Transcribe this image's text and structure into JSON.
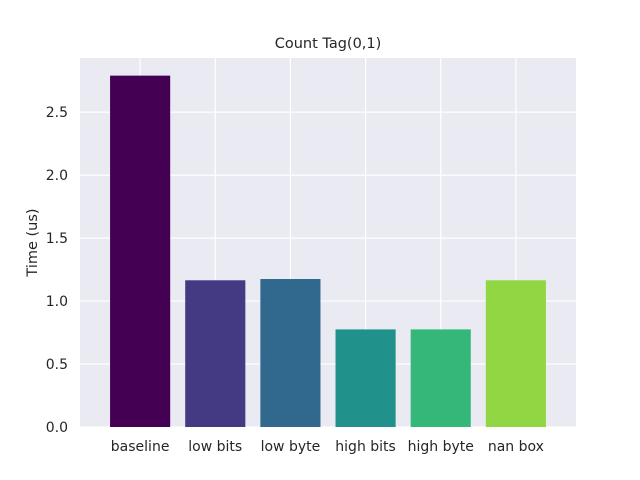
{
  "chart_data": {
    "type": "bar",
    "title": "Count Tag(0,1)",
    "xlabel": "",
    "ylabel": "Time (us)",
    "categories": [
      "baseline",
      "low bits",
      "low byte",
      "high bits",
      "high byte",
      "nan box"
    ],
    "values": [
      2.79,
      1.165,
      1.175,
      0.775,
      0.775,
      1.165
    ],
    "colors": [
      "#440154",
      "#443983",
      "#31688e",
      "#21918c",
      "#35b779",
      "#90d743"
    ],
    "ylim": [
      0,
      2.93
    ],
    "yticks": [
      "0.0",
      "0.5",
      "1.0",
      "1.5",
      "2.0",
      "2.5"
    ],
    "grid": true,
    "legend": "none",
    "plot_background": "#eaeaf2"
  }
}
